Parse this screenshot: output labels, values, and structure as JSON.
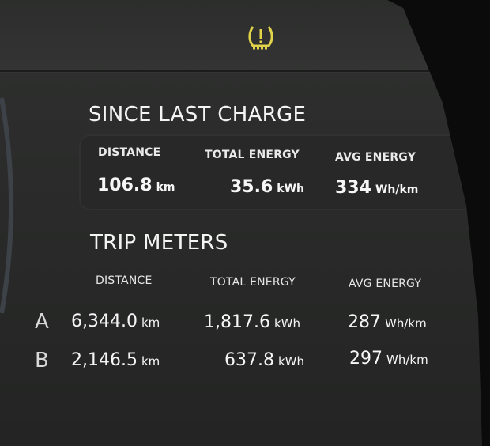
{
  "status_icon": {
    "name": "tire-pressure-warning-icon",
    "color": "#e2d44a"
  },
  "since_last_charge": {
    "title": "SINCE LAST CHARGE",
    "headers": [
      "DISTANCE",
      "TOTAL ENERGY",
      "AVG ENERGY"
    ],
    "distance": {
      "value": "106.8",
      "unit": "km"
    },
    "total_energy": {
      "value": "35.6",
      "unit": "kWh"
    },
    "avg_energy": {
      "value": "334",
      "unit": "Wh/km"
    }
  },
  "trip_meters": {
    "title": "TRIP METERS",
    "headers": [
      "DISTANCE",
      "TOTAL ENERGY",
      "AVG ENERGY"
    ],
    "rows": [
      {
        "label": "A",
        "distance": "6,344.0",
        "distance_unit": "km",
        "energy": "1,817.6",
        "energy_unit": "kWh",
        "avg": "287",
        "avg_unit": "Wh/km"
      },
      {
        "label": "B",
        "distance": "2,146.5",
        "distance_unit": "km",
        "energy": "637.8",
        "energy_unit": "kWh",
        "avg": "297",
        "avg_unit": "Wh/km"
      }
    ]
  }
}
